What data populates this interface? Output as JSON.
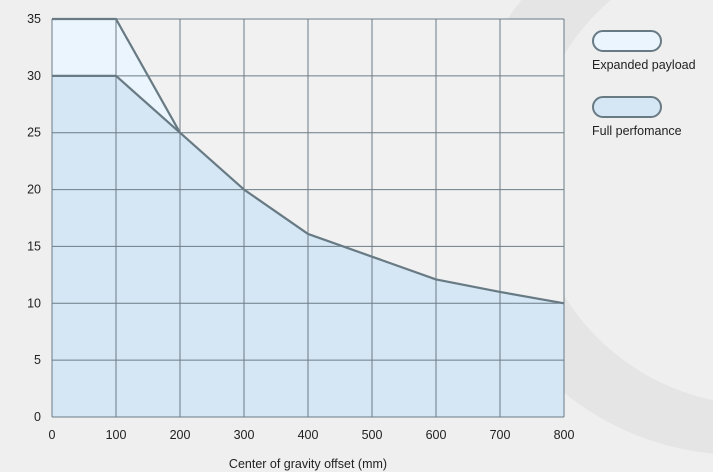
{
  "chart_data": {
    "type": "area",
    "title": "",
    "xlabel": "Center of gravity offset (mm)",
    "ylabel": "",
    "xlim": [
      0,
      800
    ],
    "ylim": [
      0,
      35
    ],
    "xticks": [
      0,
      100,
      200,
      300,
      400,
      500,
      600,
      700,
      800
    ],
    "yticks": [
      0,
      5,
      10,
      15,
      20,
      25,
      30,
      35
    ],
    "grid": true,
    "legend_position": "right",
    "series": [
      {
        "name": "Expanded payload",
        "color": "#eaf5fd",
        "x": [
          0,
          100,
          200
        ],
        "y": [
          35,
          35,
          25
        ]
      },
      {
        "name": "Full perfomance",
        "color": "#d5e6f4",
        "x": [
          0,
          100,
          200,
          300,
          400,
          500,
          600,
          700,
          800
        ],
        "y": [
          30,
          30,
          25,
          20,
          16.1,
          14.1,
          12.1,
          11,
          10
        ]
      }
    ]
  },
  "colors": {
    "background": "#eeefee",
    "plot_background": "#f1f1f1",
    "grid": "#6c7c86",
    "line": "#687a84",
    "watermark": "#e4e5e4"
  }
}
